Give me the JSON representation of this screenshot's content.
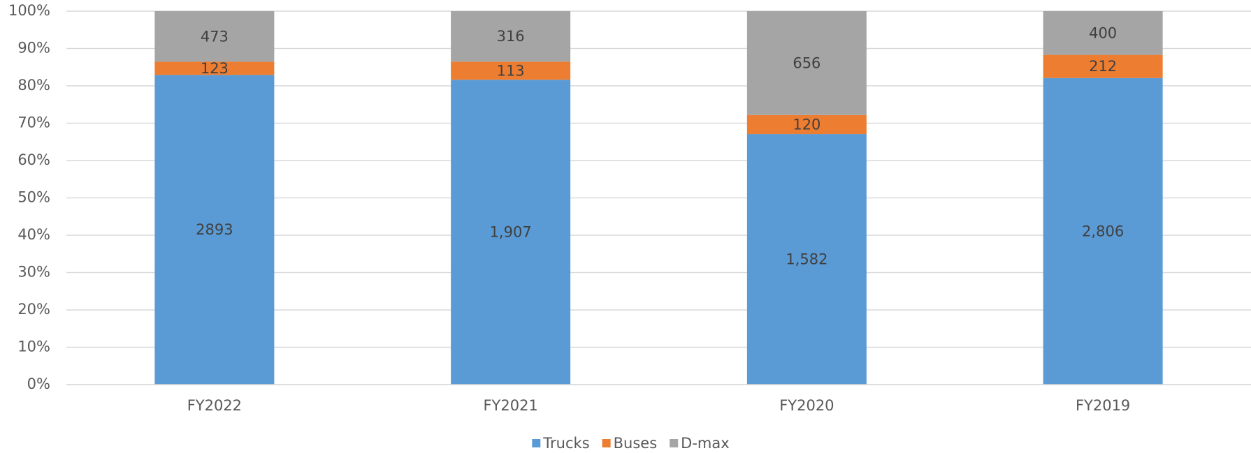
{
  "chart_data": {
    "type": "bar",
    "stacking": "percent",
    "categories": [
      "FY2022",
      "FY2021",
      "FY2020",
      "FY2019"
    ],
    "series": [
      {
        "name": "Trucks",
        "color": "#5b9bd5",
        "values": [
          2893,
          1907,
          1582,
          2806
        ],
        "value_labels": [
          "2893",
          "1,907",
          "1,582",
          "2,806"
        ]
      },
      {
        "name": "Buses",
        "color": "#ed7d31",
        "values": [
          123,
          113,
          120,
          212
        ],
        "value_labels": [
          "123",
          "113",
          "120",
          "212"
        ]
      },
      {
        "name": "D-max",
        "color": "#a5a5a5",
        "values": [
          473,
          316,
          656,
          400
        ],
        "value_labels": [
          "473",
          "316",
          "656",
          "400"
        ]
      }
    ],
    "ylim": [
      0,
      100
    ],
    "yticks": [
      {
        "value": 0,
        "label": "0%"
      },
      {
        "value": 10,
        "label": "10%"
      },
      {
        "value": 20,
        "label": "20%"
      },
      {
        "value": 30,
        "label": "30%"
      },
      {
        "value": 40,
        "label": "40%"
      },
      {
        "value": 50,
        "label": "50%"
      },
      {
        "value": 60,
        "label": "60%"
      },
      {
        "value": 70,
        "label": "70%"
      },
      {
        "value": 80,
        "label": "80%"
      },
      {
        "value": 90,
        "label": "90%"
      },
      {
        "value": 100,
        "label": "100%"
      }
    ],
    "grid": true,
    "legend": "bottom"
  }
}
